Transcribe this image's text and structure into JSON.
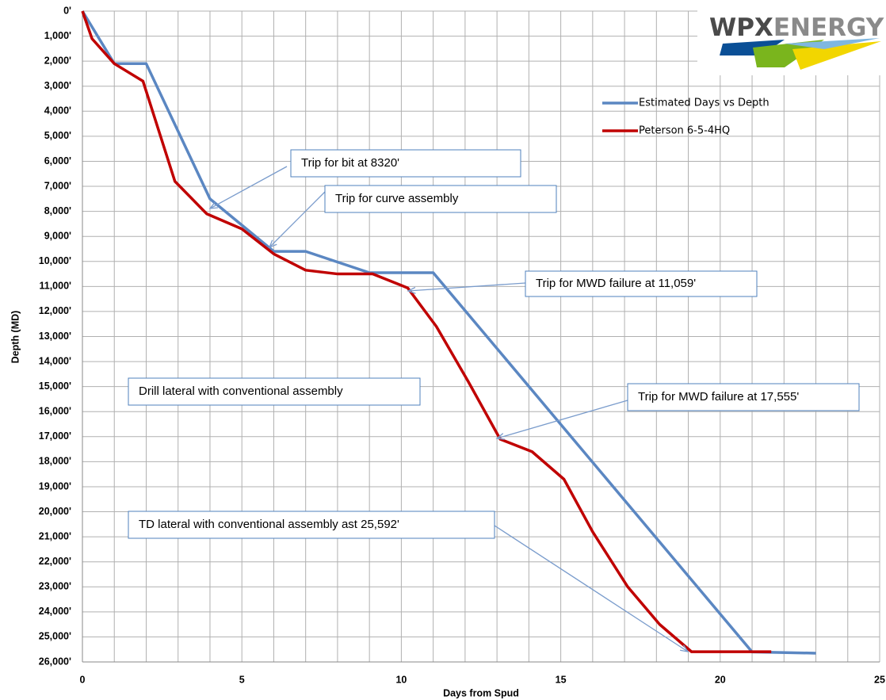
{
  "chart_data": {
    "type": "line",
    "x_label": "Days from Spud",
    "y_label": "Depth (MD)",
    "logo": {
      "first": "WPX",
      "second": "ENERGY"
    },
    "xlim": [
      0,
      25
    ],
    "xticks": [
      0,
      5,
      10,
      15,
      20,
      25
    ],
    "x_minor_ticks": [
      1,
      2,
      3,
      4,
      6,
      7,
      8,
      9,
      11,
      12,
      13,
      14,
      16,
      17,
      18,
      19,
      21,
      22,
      23,
      24
    ],
    "ylim": [
      0,
      26000
    ],
    "y_inverted": true,
    "yticks": [
      {
        "value": 0,
        "label": "0'"
      },
      {
        "value": 1000,
        "label": "1,000'"
      },
      {
        "value": 2000,
        "label": "2,000'"
      },
      {
        "value": 3000,
        "label": "3,000'"
      },
      {
        "value": 4000,
        "label": "4,000'"
      },
      {
        "value": 5000,
        "label": "5,000'"
      },
      {
        "value": 6000,
        "label": "6,000'"
      },
      {
        "value": 7000,
        "label": "7,000'"
      },
      {
        "value": 8000,
        "label": "8,000'"
      },
      {
        "value": 9000,
        "label": "9,000'"
      },
      {
        "value": 10000,
        "label": "10,000'"
      },
      {
        "value": 11000,
        "label": "11,000'"
      },
      {
        "value": 12000,
        "label": "12,000'"
      },
      {
        "value": 13000,
        "label": "13,000'"
      },
      {
        "value": 14000,
        "label": "14,000'"
      },
      {
        "value": 15000,
        "label": "15,000'"
      },
      {
        "value": 16000,
        "label": "16,000'"
      },
      {
        "value": 17000,
        "label": "17,000'"
      },
      {
        "value": 18000,
        "label": "18,000'"
      },
      {
        "value": 19000,
        "label": "19,000'"
      },
      {
        "value": 20000,
        "label": "20,000'"
      },
      {
        "value": 21000,
        "label": "21,000'"
      },
      {
        "value": 22000,
        "label": "22,000'"
      },
      {
        "value": 23000,
        "label": "23,000'"
      },
      {
        "value": 24000,
        "label": "24,000'"
      },
      {
        "value": 25000,
        "label": "25,000'"
      },
      {
        "value": 26000,
        "label": "26,000'"
      }
    ],
    "grid": true,
    "series": [
      {
        "name": "Estimated Days vs Depth",
        "color": "#5b87c2",
        "x": [
          0,
          1,
          2,
          4,
          6,
          7,
          9,
          11,
          21,
          23
        ],
        "values": [
          0,
          2100,
          2100,
          7500,
          9600,
          9600,
          10450,
          10450,
          25600,
          25650
        ]
      },
      {
        "name": "Peterson 6-5-4HQ",
        "color": "#c00000",
        "x": [
          0,
          0.3,
          1,
          1.9,
          2.9,
          3.9,
          5,
          6,
          7,
          8,
          9.1,
          10.2,
          11.1,
          12.1,
          13.1,
          14.1,
          15.1,
          16,
          17.1,
          18.1,
          19.1,
          20,
          21.6
        ],
        "values": [
          0,
          1100,
          2100,
          2800,
          6800,
          8100,
          8700,
          9700,
          10350,
          10500,
          10500,
          11059,
          12600,
          14800,
          17100,
          17600,
          18700,
          20800,
          23000,
          24500,
          25592,
          25592,
          25592
        ]
      }
    ],
    "annotations": [
      "Trip for bit at 8320'",
      "Trip for curve assembly",
      "Trip for MWD failure at 11,059'",
      "Drill lateral with conventional assembly",
      "Trip for MWD failure at 17,555'",
      "TD lateral with conventional assembly ast 25,592'"
    ]
  }
}
